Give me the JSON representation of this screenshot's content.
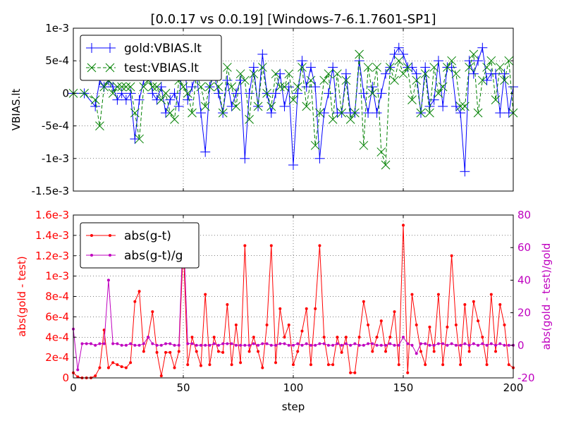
{
  "title": "[0.0.17 vs 0.0.19] [Windows-7-6.1.7601-SP1]",
  "colors": {
    "gold": "#0000ff",
    "test": "#008000",
    "absdiff": "#ff0000",
    "reldiff": "#bf00bf",
    "grid": "#000000",
    "axis": "#000000"
  },
  "chart_data": [
    {
      "type": "line",
      "ylabel": "VBIAS.lt",
      "xlim": [
        0,
        200
      ],
      "ylim": [
        -0.0015,
        0.001
      ],
      "xticks": [
        0,
        50,
        100,
        150,
        200
      ],
      "yticks": [
        {
          "value": 0.001,
          "label": "1e-3"
        },
        {
          "value": 0.0005,
          "label": "5e-4"
        },
        {
          "value": 0,
          "label": "0"
        },
        {
          "value": -0.0005,
          "label": "-5e-4"
        },
        {
          "value": -0.001,
          "label": "-1e-3"
        },
        {
          "value": -0.0015,
          "label": "-1.5e-3"
        }
      ],
      "grid": true,
      "legend_position": "top-left",
      "series": [
        {
          "name": "gold:VBIAS.lt",
          "style": "solid",
          "marker": "+",
          "x": [
            0,
            5,
            10,
            12,
            14,
            16,
            18,
            20,
            22,
            24,
            26,
            28,
            30,
            32,
            34,
            36,
            38,
            40,
            42,
            44,
            46,
            48,
            50,
            52,
            54,
            56,
            58,
            60,
            62,
            64,
            66,
            68,
            70,
            72,
            74,
            76,
            78,
            80,
            82,
            84,
            86,
            88,
            90,
            92,
            94,
            96,
            98,
            100,
            102,
            104,
            106,
            108,
            110,
            112,
            114,
            116,
            118,
            120,
            122,
            124,
            126,
            128,
            130,
            132,
            134,
            136,
            138,
            140,
            142,
            144,
            146,
            148,
            150,
            152,
            154,
            156,
            158,
            160,
            162,
            164,
            166,
            168,
            170,
            172,
            174,
            176,
            178,
            180,
            182,
            184,
            186,
            188,
            190,
            192,
            194,
            196,
            198,
            200
          ],
          "y": [
            0,
            0,
            -0.0002,
            0.0002,
            0.0001,
            0.0002,
            0.0001,
            -0.0001,
            0,
            -0.0001,
            0,
            -0.0007,
            -0.0001,
            0.0002,
            0.0005,
            0,
            -0.0001,
            0.0001,
            -0.0003,
            -0.0001,
            0,
            -0.0002,
            0.0007,
            -0.0001,
            0.0001,
            0.0003,
            -0.0003,
            -0.0009,
            0.0001,
            0.0003,
            0,
            -0.0003,
            0.0002,
            -0.0002,
            0,
            0.0002,
            -0.001,
            0,
            0.0004,
            -0.0002,
            0.0006,
            0,
            -0.0003,
            0,
            0.0003,
            -0.0002,
            0.0001,
            -0.0011,
            0,
            0.0005,
            0.0001,
            0.0004,
            0.0001,
            -0.001,
            -0.0003,
            0,
            0.0004,
            -0.0003,
            -0.0003,
            0.0003,
            -0.0003,
            -0.0003,
            0.0005,
            0,
            -0.0003,
            0.0001,
            -0.0003,
            0,
            0.0003,
            0.0004,
            0.0006,
            0.0007,
            0.0006,
            0.0004,
            0.0004,
            0.0003,
            -0.0003,
            0.0004,
            -0.0002,
            -0.0001,
            0.0005,
            -0.0002,
            0.0004,
            0.0004,
            -0.0002,
            -0.0003,
            -0.0012,
            0.0005,
            0.0003,
            0.0005,
            0.0007,
            0.0002,
            0.0003,
            0.0003,
            -0.0003,
            0.0003,
            -0.0003,
            0.0001
          ]
        },
        {
          "name": "test:VBIAS.lt",
          "style": "dashed",
          "marker": "x",
          "x": [
            0,
            5,
            10,
            12,
            14,
            16,
            18,
            20,
            22,
            24,
            26,
            28,
            30,
            32,
            34,
            36,
            38,
            40,
            42,
            44,
            46,
            48,
            50,
            52,
            54,
            56,
            58,
            60,
            62,
            64,
            66,
            68,
            70,
            72,
            74,
            76,
            78,
            80,
            82,
            84,
            86,
            88,
            90,
            92,
            94,
            96,
            98,
            100,
            102,
            104,
            106,
            108,
            110,
            112,
            114,
            116,
            118,
            120,
            122,
            124,
            126,
            128,
            130,
            132,
            134,
            136,
            138,
            140,
            142,
            144,
            146,
            148,
            150,
            152,
            154,
            156,
            158,
            160,
            162,
            164,
            166,
            168,
            170,
            172,
            174,
            176,
            178,
            180,
            182,
            184,
            186,
            188,
            190,
            192,
            194,
            196,
            198,
            200
          ],
          "y": [
            0,
            0,
            -0.0001,
            -0.0005,
            0.0001,
            0.0002,
            0,
            0.0001,
            0.0001,
            0.0001,
            0.0001,
            -0.0003,
            -0.0007,
            0.0001,
            0.0002,
            0.0001,
            0.0001,
            -0.0001,
            0,
            -0.0003,
            -0.0004,
            0.0002,
            0.0001,
            0,
            -0.0003,
            0.0003,
            0.0001,
            -0.0002,
            0.0001,
            0.0004,
            0.0001,
            -0.0003,
            0.0004,
            0.0001,
            -0.0002,
            0.0003,
            0.0002,
            -0.0004,
            0.0003,
            -0.0002,
            0.0004,
            0,
            -0.0002,
            0.0003,
            0.0001,
            0.0001,
            0.0003,
            -0.0001,
            0.0001,
            0.0004,
            -0.0002,
            0.0002,
            -0.0008,
            -0.0003,
            0.0002,
            0.0003,
            -0.0004,
            0.0003,
            -0.0003,
            0.0002,
            -0.0004,
            -0.0003,
            0.0006,
            -0.0008,
            0.0004,
            0,
            0.0004,
            -0.0009,
            -0.0011,
            0.0004,
            0.0002,
            0.0005,
            0.0003,
            0.0004,
            -0.0001,
            0.0002,
            -0.0003,
            0.0003,
            -0.0003,
            0.0004,
            0,
            0.0001,
            0.0004,
            0.0005,
            0.0003,
            -0.0002,
            -0.0002,
            0.0004,
            0.0006,
            -0.0003,
            0.0002,
            0.0004,
            0.0005,
            -0.0001,
            0.0004,
            0.0002,
            0.0005,
            -0.0003
          ]
        }
      ]
    },
    {
      "type": "line",
      "xlabel": "step",
      "ylabel": "abs(gold - test)",
      "ylabel_right": "abs(gold - test)/gold",
      "xlim": [
        0,
        200
      ],
      "ylim": [
        0,
        0.0016
      ],
      "ylim_right": [
        -20,
        80
      ],
      "xticks": [
        0,
        50,
        100,
        150,
        200
      ],
      "yticks": [
        {
          "value": 0.0016,
          "label": "1.6e-3"
        },
        {
          "value": 0.0014,
          "label": "1.4e-3"
        },
        {
          "value": 0.0012,
          "label": "1.2e-3"
        },
        {
          "value": 0.001,
          "label": "1e-3"
        },
        {
          "value": 0.0008,
          "label": "8e-4"
        },
        {
          "value": 0.0006,
          "label": "6e-4"
        },
        {
          "value": 0.0004,
          "label": "4e-4"
        },
        {
          "value": 0.0002,
          "label": "2e-4"
        },
        {
          "value": 0,
          "label": "0"
        }
      ],
      "yticks_right": [
        {
          "value": 80,
          "label": "80"
        },
        {
          "value": 60,
          "label": "60"
        },
        {
          "value": 40,
          "label": "40"
        },
        {
          "value": 20,
          "label": "20"
        },
        {
          "value": 0,
          "label": "0"
        },
        {
          "value": -20,
          "label": "-20"
        }
      ],
      "grid": true,
      "legend_position": "top-left",
      "series": [
        {
          "name": "abs(g-t)",
          "axis": "left",
          "x": [
            0,
            2,
            4,
            6,
            8,
            10,
            12,
            14,
            16,
            18,
            20,
            22,
            24,
            26,
            28,
            30,
            32,
            34,
            36,
            38,
            40,
            42,
            44,
            46,
            48,
            50,
            52,
            54,
            56,
            58,
            60,
            62,
            64,
            66,
            68,
            70,
            72,
            74,
            76,
            78,
            80,
            82,
            84,
            86,
            88,
            90,
            92,
            94,
            96,
            98,
            100,
            102,
            104,
            106,
            108,
            110,
            112,
            114,
            116,
            118,
            120,
            122,
            124,
            126,
            128,
            130,
            132,
            134,
            136,
            138,
            140,
            142,
            144,
            146,
            148,
            150,
            152,
            154,
            156,
            158,
            160,
            162,
            164,
            166,
            168,
            170,
            172,
            174,
            176,
            178,
            180,
            182,
            184,
            186,
            188,
            190,
            192,
            194,
            196,
            198,
            200
          ],
          "y": [
            5e-05,
            1e-05,
            0,
            0,
            0,
            2e-05,
            0.0001,
            0.00047,
            0.0001,
            0.00015,
            0.00013,
            0.00011,
            0.0001,
            0.00015,
            0.00075,
            0.00085,
            0.00026,
            0.0004,
            0.00065,
            0.00025,
            2e-05,
            0.00025,
            0.00025,
            0.0001,
            0.00026,
            0.0013,
            0.00013,
            0.0004,
            0.00026,
            0.00012,
            0.00082,
            0.00013,
            0.0004,
            0.00026,
            0.00025,
            0.00072,
            0.00013,
            0.00052,
            0.00015,
            0.0013,
            0.00026,
            0.0004,
            0.00026,
            0.0001,
            0.00052,
            0.0013,
            0.00015,
            0.00068,
            0.0004,
            0.00052,
            0.00013,
            0.00026,
            0.00046,
            0.00068,
            0.00013,
            0.00068,
            0.0013,
            0.0004,
            0.00013,
            0.00013,
            0.0004,
            0.00025,
            0.0004,
            5e-05,
            5e-05,
            0.0004,
            0.00075,
            0.00052,
            0.00026,
            0.0004,
            0.00056,
            0.00026,
            0.0004,
            0.00065,
            0.00013,
            0.0015,
            5e-05,
            0.00082,
            0.00052,
            0.00026,
            0.00013,
            0.0005,
            0.00026,
            0.00082,
            0.00013,
            0.0005,
            0.0012,
            0.00052,
            0.00013,
            0.00072,
            0.00026,
            0.00075,
            0.00056,
            0.0004,
            0.00013,
            0.00082,
            0.00026,
            0.00072,
            0.00052,
            0.00013,
            0.0001
          ]
        },
        {
          "name": "abs(g-t)/g",
          "axis": "right",
          "x": [
            0,
            2,
            4,
            6,
            8,
            10,
            12,
            14,
            16,
            18,
            20,
            22,
            24,
            26,
            28,
            30,
            32,
            34,
            36,
            38,
            40,
            42,
            44,
            46,
            48,
            50,
            52,
            54,
            56,
            58,
            60,
            62,
            64,
            66,
            68,
            70,
            72,
            74,
            76,
            78,
            80,
            82,
            84,
            86,
            88,
            90,
            92,
            94,
            96,
            98,
            100,
            102,
            104,
            106,
            108,
            110,
            112,
            114,
            116,
            118,
            120,
            122,
            124,
            126,
            128,
            130,
            132,
            134,
            136,
            138,
            140,
            142,
            144,
            146,
            148,
            150,
            152,
            154,
            156,
            158,
            160,
            162,
            164,
            166,
            168,
            170,
            172,
            174,
            176,
            178,
            180,
            182,
            184,
            186,
            188,
            190,
            192,
            194,
            196,
            198,
            200
          ],
          "y": [
            10,
            -15,
            1,
            1,
            1,
            0,
            1,
            1,
            40,
            1,
            1,
            0,
            0,
            1,
            0,
            0,
            1,
            5,
            1,
            0,
            0,
            1,
            1,
            0,
            0,
            72,
            1,
            1,
            0,
            0,
            0,
            0,
            1,
            0,
            1,
            1,
            1,
            0,
            0,
            0,
            0,
            1,
            0,
            1,
            1,
            0,
            0,
            1,
            1,
            0,
            0,
            1,
            0,
            1,
            0,
            0,
            1,
            1,
            0,
            0,
            1,
            0,
            1,
            0,
            1,
            0,
            0,
            1,
            1,
            0,
            0,
            0,
            1,
            0,
            0,
            5,
            1,
            0,
            -5,
            1,
            1,
            0,
            0,
            1,
            1,
            0,
            1,
            0,
            0,
            1,
            0,
            1,
            0,
            1,
            0,
            1,
            0,
            1,
            0,
            0,
            0
          ]
        }
      ]
    }
  ]
}
